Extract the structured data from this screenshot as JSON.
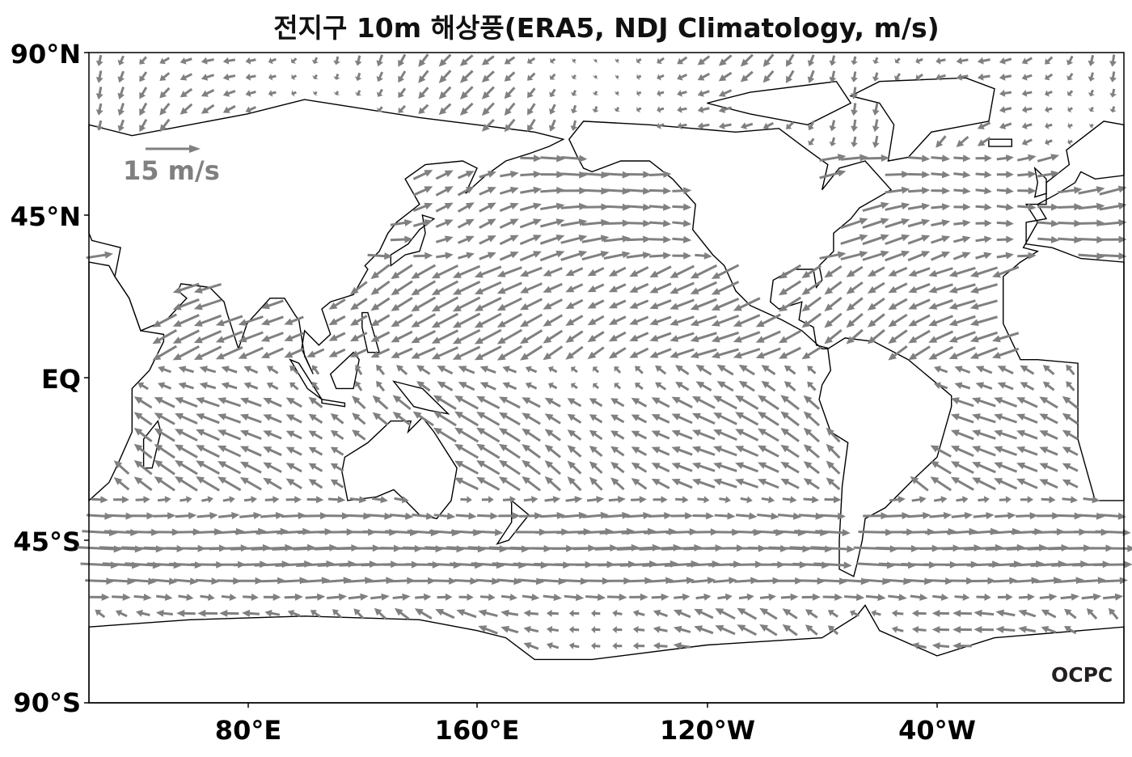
{
  "title": "전지구 10m 해상풍(ERA5, NDJ Climatology, m/s)",
  "axes": {
    "y_ticks": [
      "90°N",
      "45°N",
      "EQ",
      "45°S",
      "90°S"
    ],
    "x_ticks": [
      "80°E",
      "160°E",
      "120°W",
      "40°W"
    ]
  },
  "reference_vector": {
    "label": "15 m/s",
    "speed": 15
  },
  "logo": "OCPC",
  "colors": {
    "vector": "#808080",
    "coast": "#000000",
    "background": "#ffffff"
  },
  "map": {
    "projection": "PlateCarree",
    "lon_range": [
      25,
      385
    ],
    "lat_range": [
      -90,
      90
    ],
    "variable": "10m wind",
    "units": "m/s"
  }
}
